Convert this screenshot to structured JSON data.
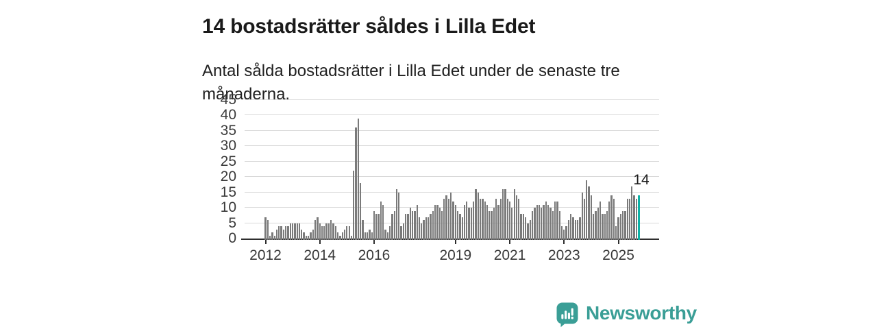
{
  "header": {
    "title": "14 bostadsrätter såldes i Lilla Edet",
    "subtitle": "Antal sålda bostadsrätter i Lilla Edet under de senaste tre månaderna."
  },
  "chart_data": {
    "type": "bar",
    "title": "14 bostadsrätter såldes i Lilla Edet",
    "subtitle": "Antal sålda bostadsrätter i Lilla Edet under de senaste tre månaderna.",
    "x_start": "2012-01",
    "x_end": "2025-10",
    "x_frequency": "monthly",
    "categories_note": "one bar per month, Jan 2012 through Oct 2025",
    "series": [
      {
        "name": "Antal sålda bostadsrätter (rullande tre månader)",
        "values": [
          7,
          6,
          1,
          2,
          1,
          3,
          4,
          4,
          3,
          4,
          4,
          5,
          5,
          5,
          5,
          5,
          3,
          2,
          1,
          1,
          2,
          3,
          6,
          7,
          5,
          4,
          4,
          5,
          5,
          6,
          5,
          4,
          2,
          1,
          2,
          3,
          4,
          4,
          1,
          22,
          36,
          39,
          18,
          6,
          2,
          2,
          3,
          2,
          9,
          8,
          8,
          12,
          11,
          3,
          2,
          4,
          8,
          9,
          16,
          15,
          4,
          5,
          8,
          8,
          10,
          9,
          9,
          11,
          7,
          5,
          6,
          7,
          7,
          8,
          9,
          11,
          11,
          10,
          9,
          13,
          14,
          13,
          15,
          12,
          11,
          9,
          8,
          7,
          11,
          12,
          10,
          10,
          12,
          16,
          15,
          13,
          13,
          12,
          11,
          9,
          9,
          10,
          13,
          11,
          13,
          16,
          16,
          13,
          12,
          10,
          16,
          14,
          13,
          8,
          8,
          7,
          5,
          6,
          9,
          10,
          11,
          11,
          10,
          11,
          12,
          11,
          10,
          9,
          12,
          12,
          9,
          4,
          3,
          4,
          6,
          8,
          7,
          6,
          6,
          7,
          15,
          13,
          19,
          17,
          14,
          8,
          9,
          10,
          12,
          8,
          8,
          9,
          12,
          14,
          13,
          4,
          7,
          8,
          9,
          9,
          13,
          13,
          17,
          14,
          13,
          14
        ]
      }
    ],
    "highlight_index": 165,
    "annotation": {
      "text": "14",
      "applies_to": "last bar"
    },
    "ylim": [
      0,
      45
    ],
    "yticks": [
      0,
      5,
      10,
      15,
      20,
      25,
      30,
      35,
      40,
      45
    ],
    "xticks": [
      2012,
      2014,
      2016,
      2019,
      2021,
      2023,
      2025
    ],
    "xlabel": "",
    "ylabel": "",
    "grid": true,
    "legend": "none",
    "bar_color": "#7a7a7a",
    "highlight_color": "#0db1a6",
    "gridline_color": "#d9d9d9",
    "axis_color": "#2e2e2e"
  },
  "branding": {
    "logo_text": "Newsworthy",
    "logo_color": "#3a9e96",
    "logo_icon": "speech-bubble-with-bar-chart-and-exclamation"
  }
}
